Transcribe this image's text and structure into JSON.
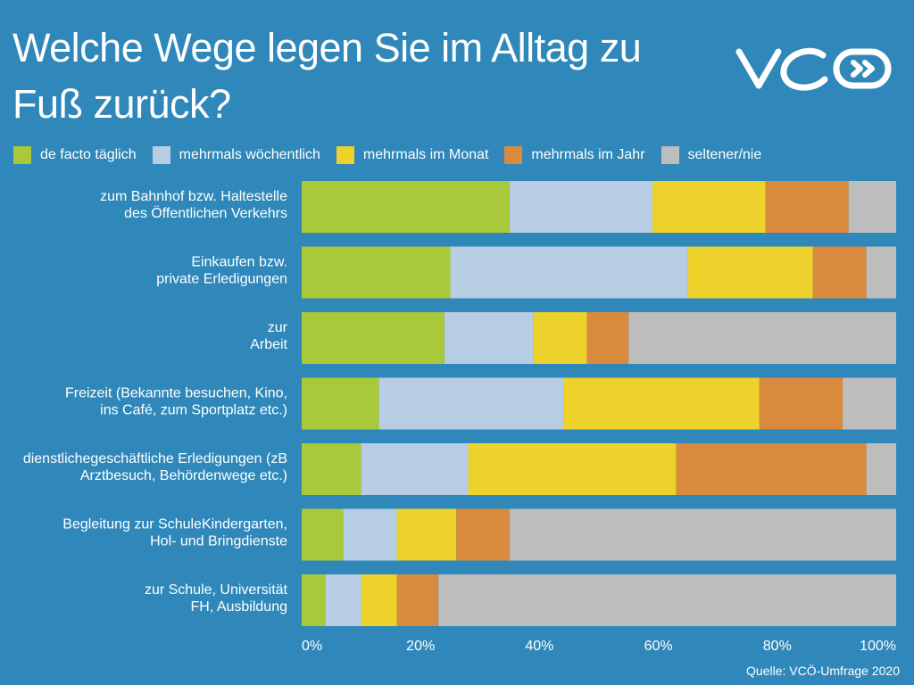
{
  "header": {
    "title": "Welche Wege legen Sie im Alltag zu Fuß zurück?"
  },
  "logo": {
    "text": "VCÖ",
    "icon": "vco-logo-icon"
  },
  "colors": {
    "background": "#2f88b9",
    "de_facto_taeglich": "#a9c93a",
    "mehrmals_woechentlich": "#b6cde3",
    "mehrmals_im_monat": "#ecd22a",
    "mehrmals_im_jahr": "#d98a3d",
    "seltener_nie": "#bdbdbd",
    "white": "#ffffff"
  },
  "source": "Quelle: VCÖ-Umfrage 2020",
  "chart_data": {
    "type": "bar",
    "orientation": "horizontal",
    "stacked": true,
    "title": "Welche Wege legen Sie im Alltag zu Fuß zurück?",
    "xlabel": "",
    "ylabel": "",
    "xlim": [
      0,
      100
    ],
    "x_ticks": [
      "0%",
      "20%",
      "40%",
      "60%",
      "80%",
      "100%"
    ],
    "grid": false,
    "legend_position": "top",
    "categories": [
      "zum Bahnhof bzw. Haltestelle des Öffentlichen Verkehrs",
      "Einkaufen bzw. private Erledigungen",
      "zur Arbeit",
      "Freizeit (Bekannte besuchen, Kino, ins Café, zum Sportplatz etc.)",
      "dienstlichegeschäftliche Erledigungen (zB Arztbesuch, Behördenwege etc.)",
      "Begleitung zur SchuleKindergarten, Hol- und Bringdienste",
      "zur Schule, Universität FH, Ausbildung"
    ],
    "category_lines": [
      [
        "zum Bahnhof bzw. Haltestelle",
        "des Öffentlichen Verkehrs"
      ],
      [
        "Einkaufen bzw.",
        "private Erledigungen"
      ],
      [
        "zur",
        "Arbeit"
      ],
      [
        "Freizeit (Bekannte besuchen, Kino,",
        "ins Café, zum Sportplatz etc.)"
      ],
      [
        "dienstlichegeschäftliche Erledigungen (zB",
        "Arztbesuch, Behördenwege etc.)"
      ],
      [
        "Begleitung zur SchuleKindergarten,",
        "Hol- und Bringdienste"
      ],
      [
        "zur Schule, Universität",
        "FH, Ausbildung"
      ]
    ],
    "series": [
      {
        "name": "de facto täglich",
        "color_key": "de_facto_taeglich",
        "values": [
          35,
          25,
          24,
          13,
          10,
          7,
          4
        ]
      },
      {
        "name": "mehrmals wöchentlich",
        "color_key": "mehrmals_woechentlich",
        "values": [
          24,
          40,
          15,
          31,
          18,
          9,
          6
        ]
      },
      {
        "name": "mehrmals im Monat",
        "color_key": "mehrmals_im_monat",
        "values": [
          19,
          21,
          9,
          33,
          35,
          10,
          6
        ]
      },
      {
        "name": "mehrmals im Jahr",
        "color_key": "mehrmals_im_jahr",
        "values": [
          14,
          9,
          7,
          14,
          32,
          9,
          7
        ]
      },
      {
        "name": "seltener/nie",
        "color_key": "seltener_nie",
        "values": [
          8,
          5,
          45,
          9,
          5,
          65,
          77
        ]
      }
    ]
  }
}
